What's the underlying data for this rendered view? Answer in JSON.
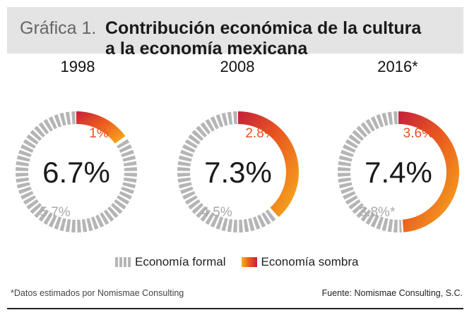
{
  "header": {
    "prefix": "Gráfica 1.",
    "title": "Contribución económica de la cultura\na la economía mexicana"
  },
  "legend": {
    "formal": "Economía formal",
    "shadow": "Economía sombra"
  },
  "footnote": "*Datos estimados por Nomismae Consulting",
  "source": "Fuente: Nomismae Consulting, S.C.",
  "colors": {
    "formal": "#b5b5b5",
    "shadow_start": "#f7b21c",
    "shadow_mid": "#ea5a1f",
    "shadow_end": "#c4203a",
    "shadow_label": "#e8501e",
    "formal_label": "#a8a8a8"
  },
  "chart_data": [
    {
      "type": "pie",
      "year": "1998",
      "total_label": "6.7%",
      "categories": [
        "Economía formal",
        "Economía sombra"
      ],
      "values": [
        5.7,
        1.0
      ],
      "labels": [
        "5.7%",
        "1%"
      ]
    },
    {
      "type": "pie",
      "year": "2008",
      "total_label": "7.3%",
      "categories": [
        "Economía formal",
        "Economía sombra"
      ],
      "values": [
        4.5,
        2.8
      ],
      "labels": [
        "4.5%",
        "2.8%"
      ]
    },
    {
      "type": "pie",
      "year": "2016*",
      "total_label": "7.4%",
      "categories": [
        "Economía formal",
        "Economía sombra"
      ],
      "values": [
        3.8,
        3.6
      ],
      "labels": [
        "3.8%*",
        "3.6%*"
      ]
    }
  ]
}
